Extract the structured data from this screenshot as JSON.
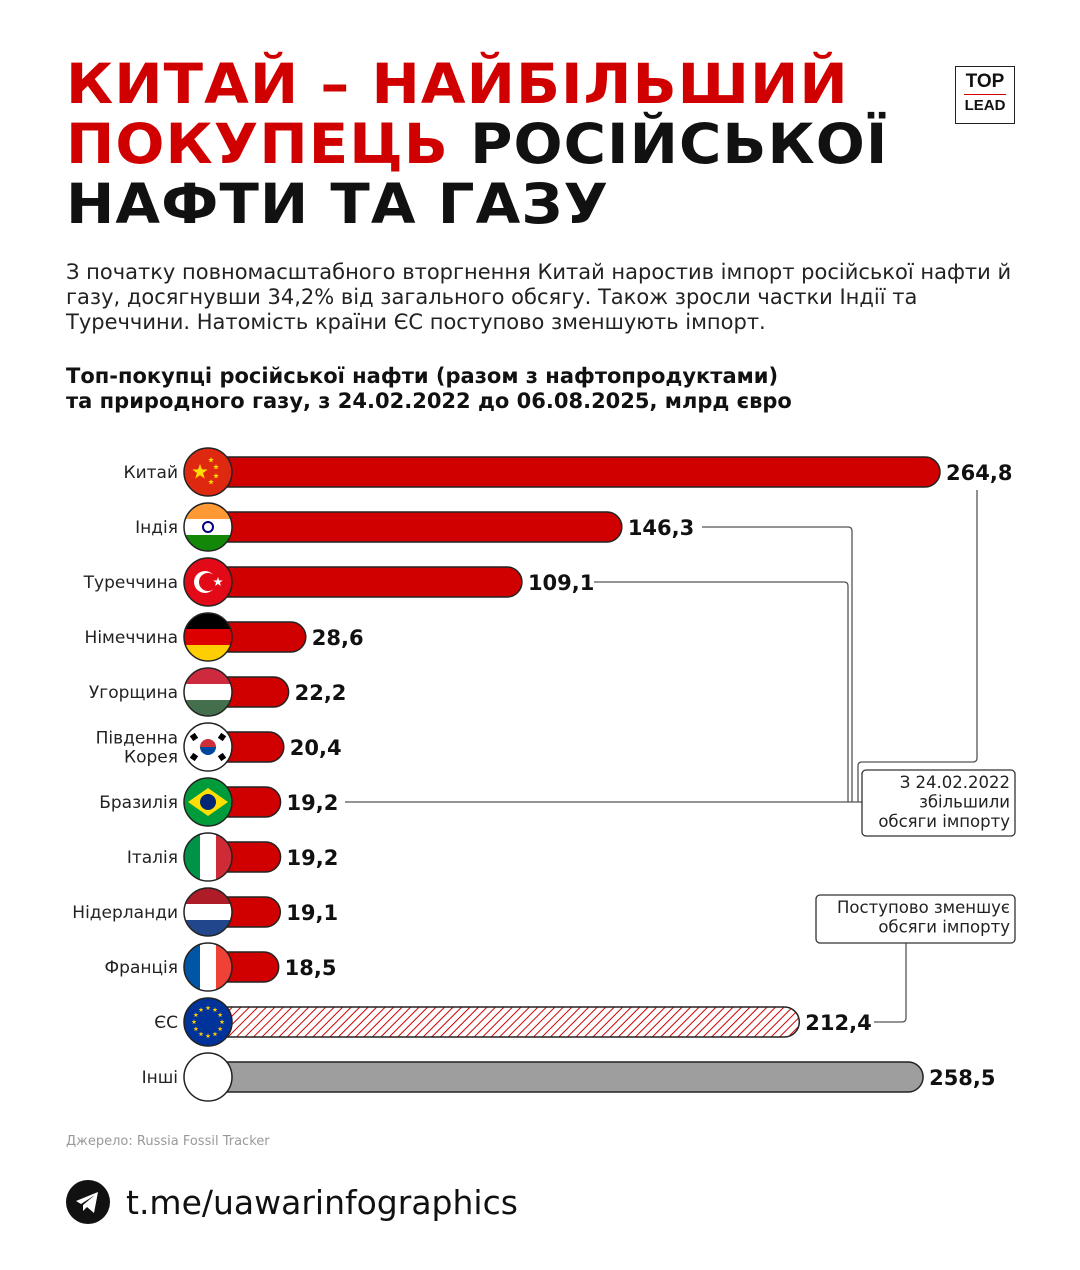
{
  "title": {
    "part1": "КИТАЙ – НАЙБІЛЬШИЙ",
    "part2_red": "ПОКУПЕЦЬ",
    "part2_black": "РОСІЙСЬКОЇ",
    "part3": "НАФТИ ТА ГАЗУ"
  },
  "logo": {
    "top": "TOP",
    "bottom": "LEAD"
  },
  "intro": "З початку повномасштабного вторгнення Китай наростив імпорт російської нафти й газу, досягнувши 34,2% від загального обсягу. Також зросли частки Індії та Туреччини. Натомість країни ЄС поступово зменшують імпорт.",
  "colors": {
    "accent": "#d10000",
    "others": "#9e9e9e",
    "eu_hatch": "#d10000"
  },
  "chart_data": {
    "type": "bar",
    "orientation": "horizontal",
    "title": "Топ-покупці російської нафти (разом з нафтопродуктами) та природного газу, з 24.02.2022 до 06.08.2025, млрд євро",
    "title_lines": [
      "Топ-покупці російської нафти (разом з нафтопродуктами)",
      "та природного газу, з 24.02.2022 до 06.08.2025, млрд євро"
    ],
    "categories": [
      "Китай",
      "Індія",
      "Туреччина",
      "Німеччина",
      "Угорщина",
      "Південна Корея",
      "Бразилія",
      "Італія",
      "Нідерланди",
      "Франція",
      "ЄС",
      "Інші"
    ],
    "category_lines": [
      [
        "Китай"
      ],
      [
        "Індія"
      ],
      [
        "Туреччина"
      ],
      [
        "Німеччина"
      ],
      [
        "Угорщина"
      ],
      [
        "Південна",
        "Корея"
      ],
      [
        "Бразилія"
      ],
      [
        "Італія"
      ],
      [
        "Нідерланди"
      ],
      [
        "Франція"
      ],
      [
        "ЄС"
      ],
      [
        "Інші"
      ]
    ],
    "values": [
      264.8,
      146.3,
      109.1,
      28.6,
      22.2,
      20.4,
      19.2,
      19.2,
      19.1,
      18.5,
      212.4,
      258.5
    ],
    "value_labels": [
      "264,8",
      "146,3",
      "109,1",
      "28,6",
      "22,2",
      "20,4",
      "19,2",
      "19,2",
      "19,1",
      "18,5",
      "212,4",
      "258,5"
    ],
    "flags": [
      "china",
      "india",
      "turkey",
      "germany",
      "hungary",
      "south-korea",
      "brazil",
      "italy",
      "netherlands",
      "france",
      "eu",
      "none"
    ],
    "styles": [
      "solid",
      "solid",
      "solid",
      "solid",
      "solid",
      "solid",
      "solid",
      "solid",
      "solid",
      "solid",
      "hatched",
      "gray"
    ],
    "xlim": [
      0,
      264.8
    ],
    "grid": false,
    "annotations": [
      {
        "lines": [
          "З 24.02.2022",
          "збільшили",
          "обсяги імпорту"
        ],
        "targets": [
          "Китай",
          "Індія",
          "Туреччина",
          "Бразилія"
        ]
      },
      {
        "lines": [
          "Поступово зменшує",
          "обсяги імпорту"
        ],
        "targets": [
          "ЄС"
        ]
      }
    ]
  },
  "source": "Джерело: Russia Fossil Tracker",
  "footer": {
    "link": "t.me/uawarinfographics",
    "icon": "telegram-icon"
  }
}
